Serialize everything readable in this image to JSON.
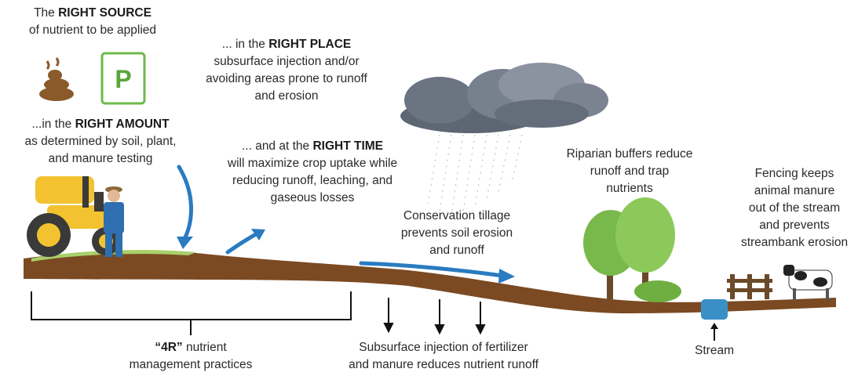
{
  "right_source": {
    "lead": "The ",
    "emphasis": "RIGHT SOURCE",
    "lines": [
      "of nutrient to be applied"
    ]
  },
  "icons": {
    "bag_letter": "P"
  },
  "right_place": {
    "lead": "... in the ",
    "emphasis": "RIGHT PLACE",
    "lines": [
      "subsurface injection and/or",
      "avoiding areas prone to runoff",
      "and erosion"
    ]
  },
  "right_amount": {
    "lead": "...in the ",
    "emphasis": "RIGHT AMOUNT",
    "lines": [
      "as determined by soil, plant,",
      "and manure testing"
    ]
  },
  "right_time": {
    "lead": "... and at the ",
    "emphasis": "RIGHT TIME",
    "lines": [
      "will maximize crop uptake while",
      "reducing runoff, leaching, and",
      "gaseous losses"
    ]
  },
  "conservation_tillage": {
    "lines": [
      "Conservation tillage",
      "prevents soil erosion",
      "and runoff"
    ]
  },
  "riparian_buffers": {
    "lines": [
      "Riparian buffers reduce",
      "runoff and trap",
      "nutrients"
    ]
  },
  "fencing": {
    "lines": [
      "Fencing keeps",
      "animal manure",
      "out of the stream",
      "and prevents",
      "streambank erosion"
    ]
  },
  "four_r": {
    "emphasis": "“4R”",
    "tail": " nutrient",
    "lines": [
      "management practices"
    ]
  },
  "subsurface_injection": {
    "lines": [
      "Subsurface injection of fertilizer",
      "and manure reduces nutrient runoff"
    ]
  },
  "stream": {
    "label": "Stream"
  }
}
